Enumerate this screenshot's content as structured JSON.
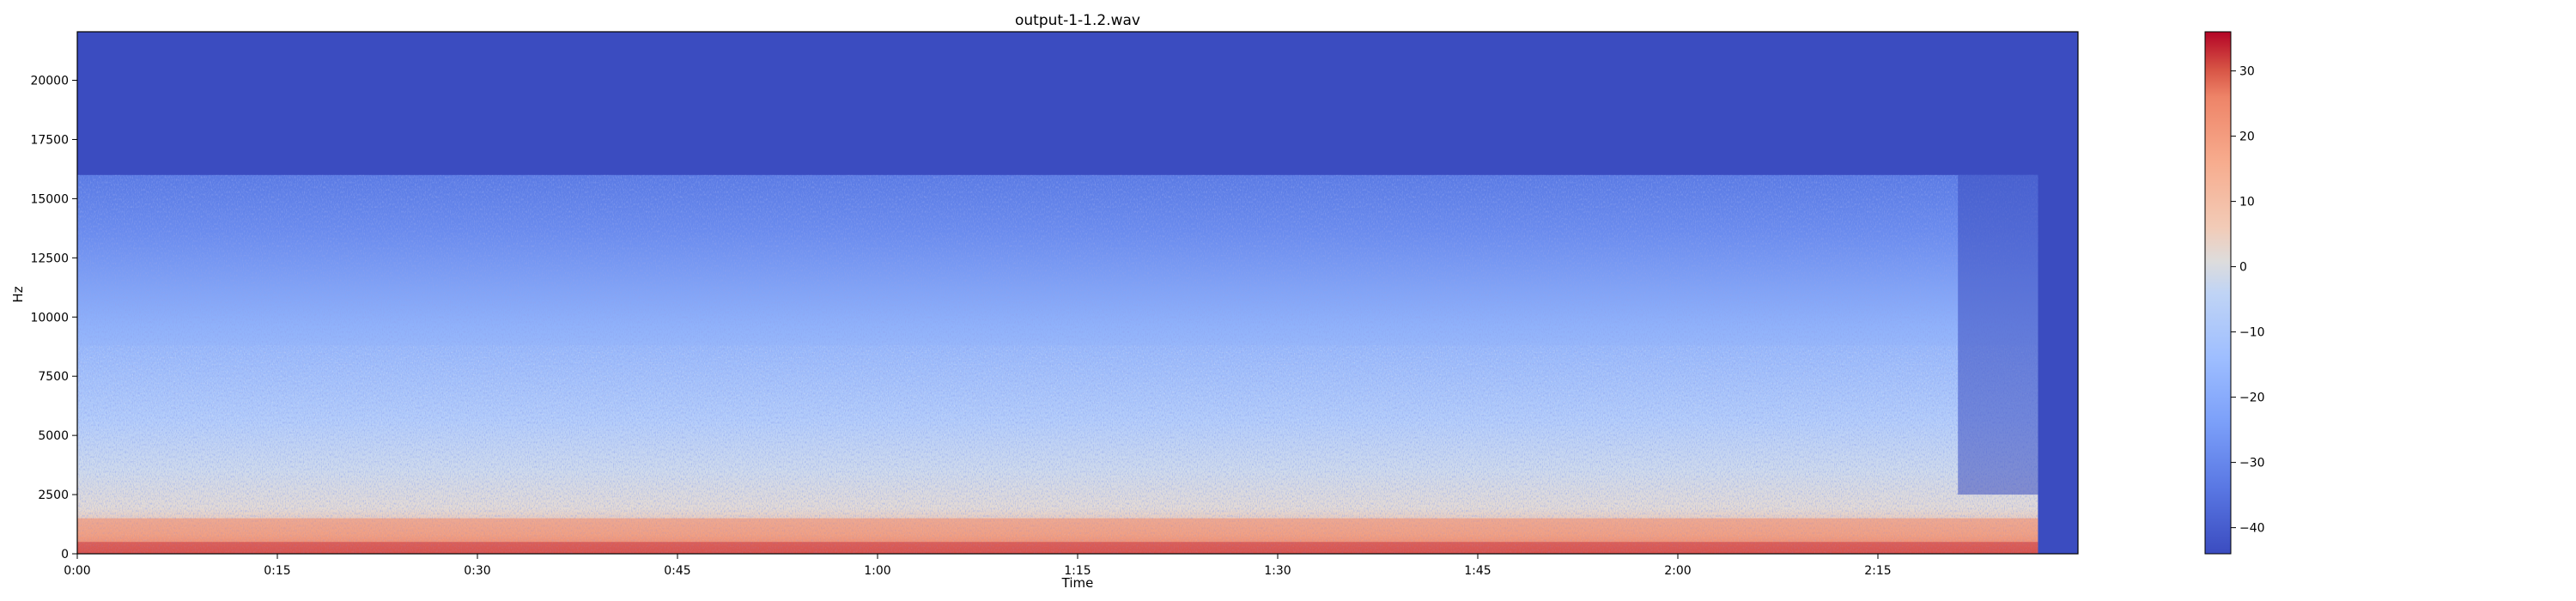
{
  "chart_data": {
    "type": "heatmap",
    "title": "output-1-1.2.wav",
    "xlabel": "Time",
    "ylabel": "Hz",
    "x_range_seconds": [
      0,
      150
    ],
    "audio_end_seconds": 147,
    "ylim": [
      0,
      22050
    ],
    "content_cutoff_hz": 16000,
    "x_ticks": [
      {
        "value": 0,
        "label": "0:00"
      },
      {
        "value": 15,
        "label": "0:15"
      },
      {
        "value": 30,
        "label": "0:30"
      },
      {
        "value": 45,
        "label": "0:45"
      },
      {
        "value": 60,
        "label": "1:00"
      },
      {
        "value": 75,
        "label": "1:15"
      },
      {
        "value": 90,
        "label": "1:30"
      },
      {
        "value": 105,
        "label": "1:45"
      },
      {
        "value": 120,
        "label": "2:00"
      },
      {
        "value": 135,
        "label": "2:15"
      }
    ],
    "y_ticks": [
      {
        "value": 0,
        "label": "0"
      },
      {
        "value": 2500,
        "label": "2500"
      },
      {
        "value": 5000,
        "label": "5000"
      },
      {
        "value": 7500,
        "label": "7500"
      },
      {
        "value": 10000,
        "label": "10000"
      },
      {
        "value": 12500,
        "label": "12500"
      },
      {
        "value": 15000,
        "label": "15000"
      },
      {
        "value": 17500,
        "label": "17500"
      },
      {
        "value": 20000,
        "label": "20000"
      }
    ],
    "colorbar": {
      "colormap": "coolwarm",
      "vmin": -44,
      "vmax": 36,
      "ticks": [
        {
          "value": 30,
          "label": "30"
        },
        {
          "value": 20,
          "label": "20"
        },
        {
          "value": 10,
          "label": "10"
        },
        {
          "value": 0,
          "label": "0"
        },
        {
          "value": -10,
          "label": "−10"
        },
        {
          "value": -20,
          "label": "−20"
        },
        {
          "value": -30,
          "label": "−30"
        },
        {
          "value": -40,
          "label": "−40"
        }
      ]
    },
    "colors": {
      "silence": "#3b4cc0",
      "low": "#5977e3",
      "mid": "#dddcdc",
      "high": "#f08b6e",
      "max": "#b40426"
    }
  }
}
